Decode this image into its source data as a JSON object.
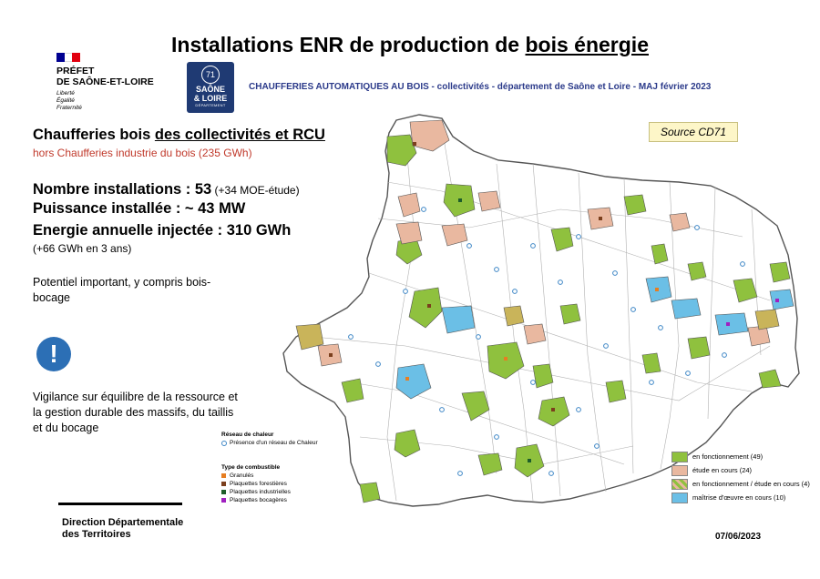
{
  "title": {
    "prefix": "Installations ENR de production de ",
    "emphasis": "bois énergie"
  },
  "prefet": {
    "flag_colors": [
      "#000091",
      "#ffffff",
      "#e1000f"
    ],
    "name_line1": "PRÉFET",
    "name_line2": "DE SAÔNE-ET-LOIRE",
    "motto": [
      "Liberté",
      "Égalité",
      "Fraternité"
    ]
  },
  "dept_logo": {
    "top": "71",
    "line1": "SAÔNE",
    "line2": "& LOIRE",
    "line3": "DÉPARTEMENT",
    "color": "#1f3a73"
  },
  "subtitle": "CHAUFFERIES AUTOMATIQUES AU BOIS - collectivités - département de Saône et Loire - MAJ février 2023",
  "source": "Source CD71",
  "summary": {
    "heading_prefix": "Chaufferies bois ",
    "heading_emphasis": "des collectivités et RCU",
    "hors": "hors  Chaufferies industrie du bois (235 GWh)",
    "installations_label": "Nombre installations : 53",
    "installations_note": " (+34 MOE-étude)",
    "puissance": "Puissance installée : ~ 43 MW",
    "energie": "Energie annuelle injectée : 310 GWh",
    "energie_gain": "(+66 GWh en 3 ans)",
    "potentiel": "Potentiel important, y compris bois-bocage",
    "warning_glyph": "!",
    "vigilance": "Vigilance sur équilibre de la ressource et la gestion durable des massifs, du taillis et du bocage"
  },
  "footer": {
    "direction_line1": "Direction Départementale",
    "direction_line2": "des Territoires",
    "date": "07/06/2023"
  },
  "legend_network": {
    "heading": "Réseau de chaleur",
    "item": "Présence d'un réseau de Chaleur",
    "color": "#3d86c6"
  },
  "legend_fuel": {
    "heading": "Type de combustible",
    "items": [
      {
        "label": "Granulés",
        "color": "#e67e22"
      },
      {
        "label": "Plaquettes forestières",
        "color": "#7b3f1d"
      },
      {
        "label": "Plaquettes industrielles",
        "color": "#1e5e2a"
      },
      {
        "label": "Plaquettes bocagères",
        "color": "#a020c0"
      }
    ]
  },
  "legend_status": [
    {
      "label": "en fonctionnement (49)",
      "color": "#8fc13e"
    },
    {
      "label": "étude en cours (24)",
      "color": "#e9b8a0"
    },
    {
      "label": "en fonctionnement / étude en cours (4)",
      "color": "#c9b45a"
    },
    {
      "label": "maîtrise d'œuvre en cours (10)",
      "color": "#6bbfe6"
    }
  ],
  "map_colors": {
    "background_commune": "#ffffff",
    "border": "#555555",
    "inner_lines": "#b0b0b0"
  }
}
